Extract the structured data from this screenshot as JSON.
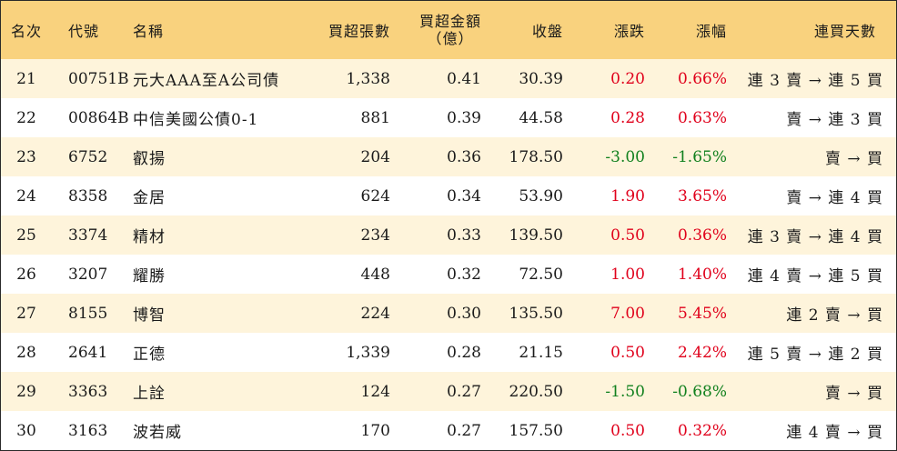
{
  "headers": {
    "rank": "名次",
    "code": "代號",
    "name": "名稱",
    "volume": "買超張數",
    "amount_line1": "買超金額",
    "amount_line2": "（億）",
    "close": "收盤",
    "change": "漲跌",
    "change_pct": "漲幅",
    "trend": "連買天數"
  },
  "rows": [
    {
      "rank": "21",
      "code": "00751B",
      "name": "元大AAA至A公司債",
      "volume": "1,338",
      "amount": "0.41",
      "close": "30.39",
      "change": "0.20",
      "change_pct": "0.66%",
      "direction": "up",
      "trend": "連 3 賣 → 連 5 買"
    },
    {
      "rank": "22",
      "code": "00864B",
      "name": "中信美國公債0-1",
      "volume": "881",
      "amount": "0.39",
      "close": "44.58",
      "change": "0.28",
      "change_pct": "0.63%",
      "direction": "up",
      "trend": "賣 → 連 3 買"
    },
    {
      "rank": "23",
      "code": "6752",
      "name": "叡揚",
      "volume": "204",
      "amount": "0.36",
      "close": "178.50",
      "change": "-3.00",
      "change_pct": "-1.65%",
      "direction": "down",
      "trend": "賣 → 買"
    },
    {
      "rank": "24",
      "code": "8358",
      "name": "金居",
      "volume": "624",
      "amount": "0.34",
      "close": "53.90",
      "change": "1.90",
      "change_pct": "3.65%",
      "direction": "up",
      "trend": "賣 → 連 4 買"
    },
    {
      "rank": "25",
      "code": "3374",
      "name": "精材",
      "volume": "234",
      "amount": "0.33",
      "close": "139.50",
      "change": "0.50",
      "change_pct": "0.36%",
      "direction": "up",
      "trend": "連 3 賣 → 連 4 買"
    },
    {
      "rank": "26",
      "code": "3207",
      "name": "耀勝",
      "volume": "448",
      "amount": "0.32",
      "close": "72.50",
      "change": "1.00",
      "change_pct": "1.40%",
      "direction": "up",
      "trend": "連 4 賣 → 連 5 買"
    },
    {
      "rank": "27",
      "code": "8155",
      "name": "博智",
      "volume": "224",
      "amount": "0.30",
      "close": "135.50",
      "change": "7.00",
      "change_pct": "5.45%",
      "direction": "up",
      "trend": "連 2 賣 → 買"
    },
    {
      "rank": "28",
      "code": "2641",
      "name": "正德",
      "volume": "1,339",
      "amount": "0.28",
      "close": "21.15",
      "change": "0.50",
      "change_pct": "2.42%",
      "direction": "up",
      "trend": "連 5 賣 → 連 2 買"
    },
    {
      "rank": "29",
      "code": "3363",
      "name": "上詮",
      "volume": "124",
      "amount": "0.27",
      "close": "220.50",
      "change": "-1.50",
      "change_pct": "-0.68%",
      "direction": "down",
      "trend": "賣 → 買"
    },
    {
      "rank": "30",
      "code": "3163",
      "name": "波若威",
      "volume": "170",
      "amount": "0.27",
      "close": "157.50",
      "change": "0.50",
      "change_pct": "0.32%",
      "direction": "up",
      "trend": "連 4 賣 → 買"
    }
  ],
  "colors": {
    "header_bg": "#f9d27e",
    "stripe_bg": "#fef4db",
    "up": "#e0001b",
    "down": "#11801e"
  }
}
